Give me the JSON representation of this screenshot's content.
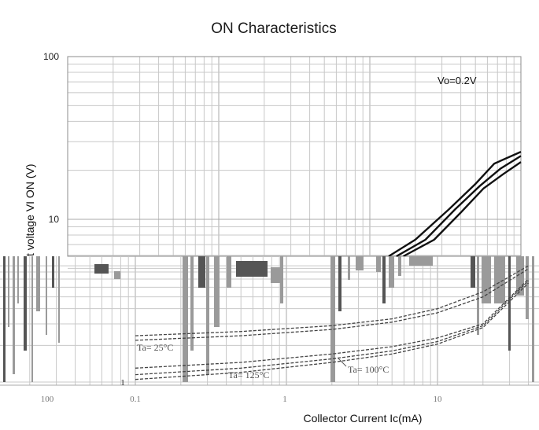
{
  "chart_data": [
    {
      "type": "line",
      "title": "ON Characteristics",
      "xlabel": "",
      "ylabel": "t voltage VI ON (V)",
      "y_ticks": [
        "100",
        "10"
      ],
      "yscale": "log",
      "ylim": [
        5,
        100
      ],
      "xscale": "log",
      "annotation": "Vo=0.2V",
      "grid": true,
      "series": [
        {
          "x": [
            4,
            6,
            10,
            15,
            20,
            30
          ],
          "y": [
            5,
            7.5,
            11.5,
            16.5,
            22,
            26
          ]
        },
        {
          "x": [
            4.5,
            7,
            11,
            16,
            22,
            30
          ],
          "y": [
            5,
            7.5,
            11.5,
            16,
            20.5,
            24.5
          ]
        },
        {
          "x": [
            5,
            8,
            12,
            17,
            23,
            30
          ],
          "y": [
            5,
            7.5,
            11,
            15.5,
            19,
            22.5
          ]
        }
      ]
    },
    {
      "type": "line",
      "title": "",
      "xlabel": "Collector Current  Ic(mA)",
      "ylabel": "",
      "x_ticks": [
        "0.1",
        "1",
        "10"
      ],
      "left_tick_label": "100",
      "y_tick_bottom": "1",
      "xscale": "log",
      "xlim": [
        0.1,
        40
      ],
      "ylim": [
        1,
        10
      ],
      "grid": true,
      "series": [
        {
          "name": "Ta= 25°C",
          "x": [
            0.1,
            0.5,
            2,
            5,
            10,
            20,
            40
          ],
          "y": [
            1.3,
            1.45,
            1.7,
            1.95,
            2.3,
            3.0,
            7.0
          ]
        },
        {
          "name": "Ta= 125°C",
          "x": [
            0.1,
            0.5,
            2,
            5,
            10,
            20,
            40
          ],
          "y": [
            1.05,
            1.2,
            1.45,
            1.7,
            2.05,
            2.8,
            6.5
          ]
        },
        {
          "name": "Ta= 100°C",
          "x": [
            0.1,
            0.5,
            2,
            5,
            10,
            20,
            40
          ],
          "y": [
            1.15,
            1.3,
            1.55,
            1.8,
            2.15,
            2.9,
            6.8
          ]
        },
        {
          "x": [
            0.1,
            0.5,
            2,
            5,
            10,
            20,
            40
          ],
          "y": [
            2.4,
            2.6,
            2.9,
            3.3,
            4.0,
            5.5,
            9.0
          ]
        },
        {
          "x": [
            0.1,
            0.5,
            2,
            5,
            10,
            20,
            40
          ],
          "y": [
            2.2,
            2.4,
            2.7,
            3.1,
            3.7,
            5.0,
            8.5
          ]
        }
      ]
    }
  ]
}
